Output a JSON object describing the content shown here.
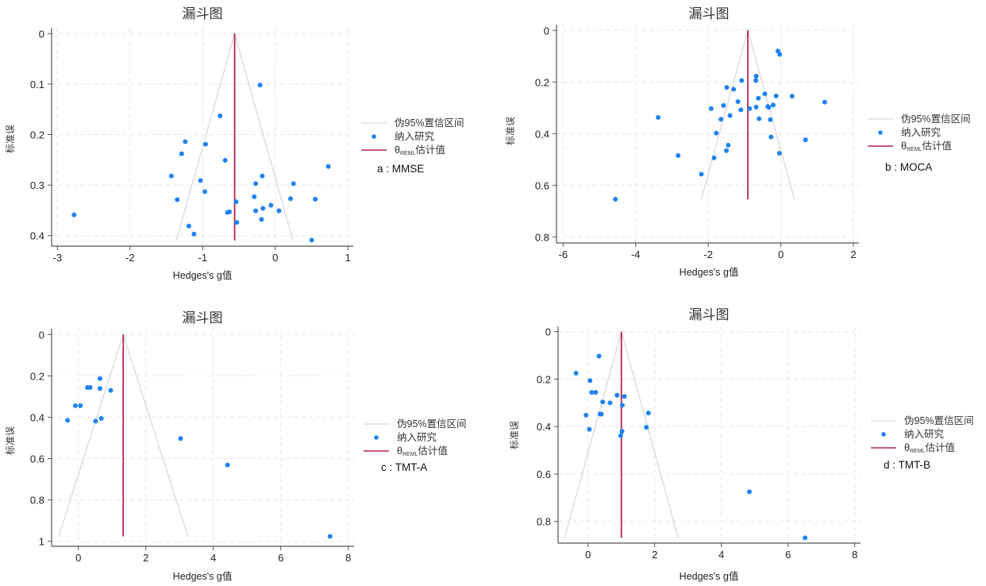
{
  "chart_data": [
    {
      "type": "scatter",
      "title": "漏斗图",
      "xlabel": "Hedges's g值",
      "ylabel": "标准误",
      "caption": "a : MMSE",
      "xticks": [
        -3,
        -2,
        -1,
        0,
        1
      ],
      "yticks": [
        0,
        0.1,
        0.2,
        0.3,
        0.4
      ],
      "ytick_labels": [
        "0",
        "0.1",
        "0.2",
        "0.3",
        "0.4"
      ],
      "y_reversed": true,
      "grid": true,
      "legend": {
        "position": "right",
        "entries": [
          "伪95%置信区间",
          "纳入研究",
          "θREML估计值"
        ],
        "theta": "θ",
        "sub": "REML",
        "est_label": "估计值"
      },
      "pooled_estimate": -0.56,
      "funnel_se_max": 0.41,
      "points": [
        [
          -0.21,
          0.102
        ],
        [
          -0.76,
          0.163
        ],
        [
          -1.24,
          0.214
        ],
        [
          -0.96,
          0.219
        ],
        [
          -1.29,
          0.238
        ],
        [
          -0.69,
          0.251
        ],
        [
          0.73,
          0.263
        ],
        [
          -1.43,
          0.282
        ],
        [
          -0.18,
          0.282
        ],
        [
          -1.03,
          0.291
        ],
        [
          -0.27,
          0.297
        ],
        [
          0.25,
          0.297
        ],
        [
          -0.97,
          0.313
        ],
        [
          -0.29,
          0.323
        ],
        [
          0.21,
          0.327
        ],
        [
          0.55,
          0.328
        ],
        [
          -1.35,
          0.329
        ],
        [
          -0.54,
          0.333
        ],
        [
          -0.06,
          0.34
        ],
        [
          -0.17,
          0.346
        ],
        [
          -0.27,
          0.351
        ],
        [
          0.05,
          0.351
        ],
        [
          -0.66,
          0.354
        ],
        [
          -0.63,
          0.353
        ],
        [
          -2.77,
          0.359
        ],
        [
          -0.53,
          0.374
        ],
        [
          -0.19,
          0.368
        ],
        [
          -1.19,
          0.381
        ],
        [
          -1.12,
          0.397
        ],
        [
          0.5,
          0.409
        ]
      ]
    },
    {
      "type": "scatter",
      "title": "漏斗图",
      "xlabel": "Hedges's g值",
      "ylabel": "标准误",
      "caption": "b : MOCA",
      "xticks": [
        -6,
        -4,
        -2,
        0,
        2
      ],
      "yticks": [
        0,
        0.2,
        0.4,
        0.6,
        0.8
      ],
      "ytick_labels": [
        "0",
        "0.2",
        "0.4",
        "0.6",
        "0.8"
      ],
      "y_reversed": true,
      "grid": true,
      "legend": {
        "position": "right",
        "entries": [
          "伪95%置信区间",
          "纳入研究",
          "θREML估计值"
        ],
        "theta": "θ",
        "sub": "REML",
        "est_label": "估计值"
      },
      "pooled_estimate": -0.91,
      "funnel_se_max": 0.655,
      "points": [
        [
          -0.08,
          0.08
        ],
        [
          -0.03,
          0.093
        ],
        [
          -0.68,
          0.177
        ],
        [
          -0.69,
          0.194
        ],
        [
          -1.08,
          0.194
        ],
        [
          -1.49,
          0.221
        ],
        [
          -1.3,
          0.228
        ],
        [
          -0.44,
          0.246
        ],
        [
          -0.13,
          0.254
        ],
        [
          0.31,
          0.255
        ],
        [
          -0.62,
          0.263
        ],
        [
          -1.18,
          0.276
        ],
        [
          1.21,
          0.278
        ],
        [
          -1.58,
          0.291
        ],
        [
          -0.21,
          0.289
        ],
        [
          -0.36,
          0.295
        ],
        [
          -0.33,
          0.298
        ],
        [
          -0.68,
          0.297
        ],
        [
          -1.92,
          0.303
        ],
        [
          -0.86,
          0.303
        ],
        [
          -1.1,
          0.308
        ],
        [
          -1.4,
          0.33
        ],
        [
          -3.38,
          0.337
        ],
        [
          -1.65,
          0.344
        ],
        [
          -0.6,
          0.342
        ],
        [
          -0.29,
          0.346
        ],
        [
          -1.78,
          0.398
        ],
        [
          -0.27,
          0.413
        ],
        [
          0.68,
          0.424
        ],
        [
          -1.45,
          0.445
        ],
        [
          -1.5,
          0.466
        ],
        [
          -0.04,
          0.476
        ],
        [
          -2.83,
          0.485
        ],
        [
          -1.84,
          0.494
        ],
        [
          -2.19,
          0.557
        ],
        [
          -4.56,
          0.654
        ]
      ]
    },
    {
      "type": "scatter",
      "title": "漏斗图",
      "xlabel": "Hedges's g值",
      "ylabel": "标准误",
      "caption": "c : TMT-A",
      "xticks": [
        0,
        2,
        4,
        6,
        8
      ],
      "yticks": [
        0,
        0.2,
        0.4,
        0.6,
        0.8,
        1
      ],
      "ytick_labels": [
        "0",
        "0.2",
        "0.4",
        "0.6",
        "0.8",
        "1"
      ],
      "y_reversed": true,
      "grid": true,
      "legend": {
        "position": "right",
        "entries": [
          "伪95%置信区间",
          "纳入研究",
          "θREML估计值"
        ],
        "theta": "θ",
        "sub": "REML",
        "est_label": "估计值"
      },
      "pooled_estimate": 1.33,
      "funnel_se_max": 0.976,
      "points": [
        [
          0.64,
          0.213
        ],
        [
          0.27,
          0.256
        ],
        [
          0.35,
          0.256
        ],
        [
          0.64,
          0.261
        ],
        [
          0.96,
          0.27
        ],
        [
          -0.09,
          0.344
        ],
        [
          0.06,
          0.344
        ],
        [
          -0.32,
          0.415
        ],
        [
          0.68,
          0.406
        ],
        [
          0.51,
          0.419
        ],
        [
          3.03,
          0.503
        ],
        [
          4.42,
          0.631
        ],
        [
          7.46,
          0.976
        ]
      ]
    },
    {
      "type": "scatter",
      "title": "漏斗图",
      "xlabel": "Hedges's g值",
      "ylabel": "标准误",
      "caption": "d : TMT-B",
      "xticks": [
        0,
        2,
        4,
        6,
        8
      ],
      "yticks": [
        0,
        0.2,
        0.4,
        0.6,
        0.8
      ],
      "ytick_labels": [
        "0",
        "0.2",
        "0.4",
        "0.6",
        "0.8"
      ],
      "y_reversed": true,
      "grid": true,
      "legend": {
        "position": "right",
        "entries": [
          "伪95%置信区间",
          "纳入研究",
          "θREML估计值"
        ],
        "theta": "θ",
        "sub": "REML",
        "est_label": "估计值"
      },
      "pooled_estimate": 1.0,
      "funnel_se_max": 0.869,
      "points": [
        [
          0.33,
          0.103
        ],
        [
          -0.36,
          0.175
        ],
        [
          0.06,
          0.206
        ],
        [
          0.11,
          0.256
        ],
        [
          0.23,
          0.256
        ],
        [
          0.87,
          0.268
        ],
        [
          1.09,
          0.273
        ],
        [
          0.44,
          0.296
        ],
        [
          0.66,
          0.3
        ],
        [
          1.03,
          0.31
        ],
        [
          1.81,
          0.343
        ],
        [
          -0.06,
          0.352
        ],
        [
          0.36,
          0.347
        ],
        [
          0.4,
          0.348
        ],
        [
          1.75,
          0.403
        ],
        [
          0.04,
          0.412
        ],
        [
          1.02,
          0.42
        ],
        [
          0.98,
          0.438
        ],
        [
          4.84,
          0.675
        ],
        [
          6.51,
          0.869
        ]
      ]
    }
  ],
  "colors": {
    "points": "#1f83f0",
    "estimate_line": "#b4254f",
    "funnel": "#d8d8d8",
    "grid": "#e6e6e6",
    "axis": "#555555"
  }
}
